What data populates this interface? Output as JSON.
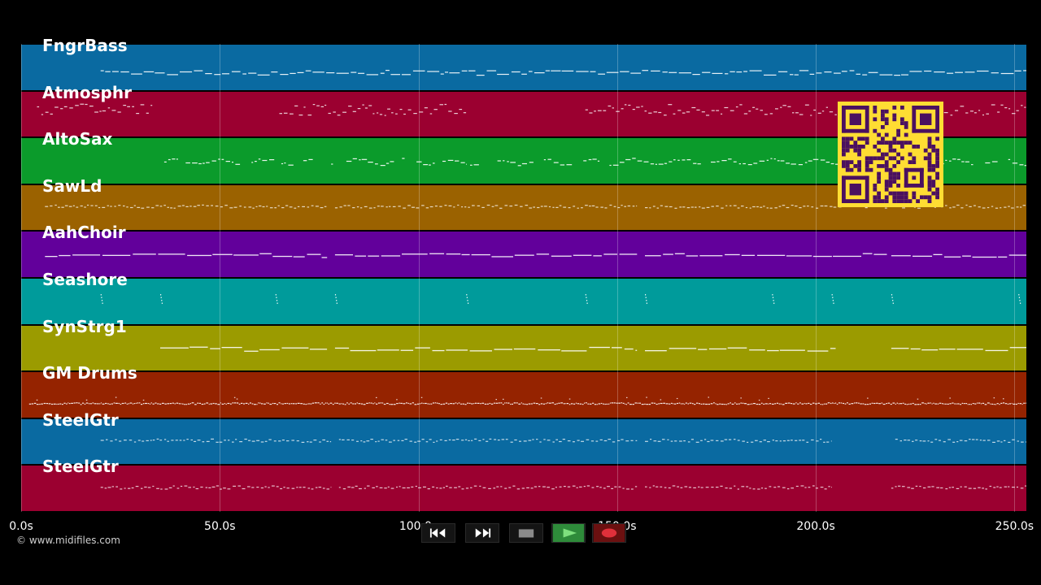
{
  "timeline": {
    "duration_seconds": 253,
    "tick_values": [
      0,
      50,
      100,
      150,
      200,
      250
    ],
    "tick_labels": [
      "0.0s",
      "50.0s",
      "100.0s",
      "150.0s",
      "200.0s",
      "250.0s"
    ]
  },
  "tracks": [
    {
      "name": "FngrBass",
      "color": "#0a6aa1",
      "segments": [
        [
          20,
          253
        ]
      ],
      "style": "bass"
    },
    {
      "name": "Atmosphr",
      "color": "#9b0030",
      "segments": [
        [
          4,
          33
        ],
        [
          65,
          112
        ],
        [
          142,
          253
        ]
      ],
      "style": "pad"
    },
    {
      "name": "AltoSax",
      "color": "#0b9b2b",
      "segments": [
        [
          36,
          112
        ],
        [
          113,
          253
        ]
      ],
      "style": "lead"
    },
    {
      "name": "SawLd",
      "color": "#9b6200",
      "segments": [
        [
          6,
          77
        ],
        [
          79,
          155
        ],
        [
          157,
          253
        ]
      ],
      "style": "dense"
    },
    {
      "name": "AahChoir",
      "color": "#62009b",
      "segments": [
        [
          6,
          77
        ],
        [
          79,
          155
        ],
        [
          157,
          218
        ],
        [
          219,
          253
        ]
      ],
      "style": "long"
    },
    {
      "name": "Seashore",
      "color": "#009b9b",
      "segments": [],
      "dots": [
        20,
        35,
        64,
        79,
        112,
        142,
        157,
        189,
        204,
        219,
        251
      ],
      "style": "dots"
    },
    {
      "name": "SynStrg1",
      "color": "#9b9b00",
      "segments": [
        [
          35,
          77
        ],
        [
          79,
          155
        ],
        [
          157,
          205
        ],
        [
          219,
          253
        ]
      ],
      "style": "long"
    },
    {
      "name": "GM Drums",
      "color": "#952300",
      "segments": [
        [
          2,
          253
        ]
      ],
      "style": "drums"
    },
    {
      "name": "SteelGtr",
      "color": "#0a6aa1",
      "segments": [
        [
          20,
          78
        ],
        [
          80,
          155
        ],
        [
          157,
          204
        ],
        [
          220,
          253
        ]
      ],
      "style": "dense"
    },
    {
      "name": "SteelGtr",
      "color": "#9b0030",
      "segments": [
        [
          20,
          78
        ],
        [
          80,
          155
        ],
        [
          157,
          204
        ],
        [
          219,
          253
        ]
      ],
      "style": "dense"
    }
  ],
  "copyright": "© www.midifiles.com",
  "transport": {
    "buttons": [
      {
        "name": "rewind-button",
        "icon": "rewind-icon"
      },
      {
        "name": "fast-forward-button",
        "icon": "fast-forward-icon"
      },
      {
        "name": "stop-button",
        "icon": "stop-icon"
      },
      {
        "name": "play-button",
        "icon": "play-icon"
      },
      {
        "name": "record-button",
        "icon": "record-icon"
      }
    ],
    "colors": {
      "play": "#2e8b3a",
      "record": "#9b1b1b",
      "stop": "#5a5a5a"
    }
  },
  "qr_code": {
    "color_bg": "#ffdd33",
    "color_fg": "#4a1060"
  }
}
